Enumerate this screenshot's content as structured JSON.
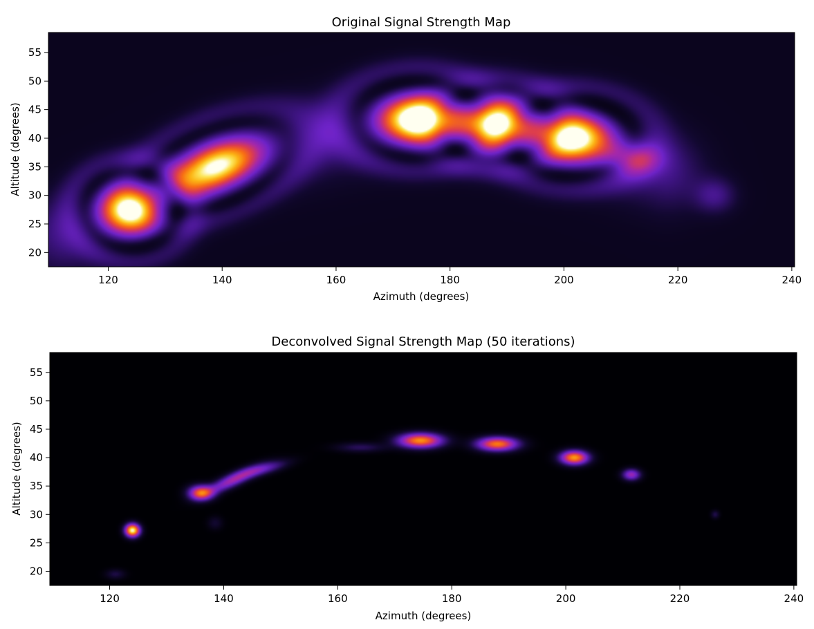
{
  "chart_data": [
    {
      "type": "heatmap",
      "title": "Original Signal Strength Map",
      "xlabel": "Azimuth (degrees)",
      "ylabel": "Altitude (degrees)",
      "xlim": [
        109.5,
        240.5
      ],
      "ylim": [
        17.5,
        58.5
      ],
      "xticks": [
        120,
        140,
        160,
        180,
        200,
        220,
        240
      ],
      "yticks": [
        20,
        25,
        30,
        35,
        40,
        45,
        50,
        55
      ],
      "colormap": "inferno-like (black-purple-orange-yellow-white)",
      "grid": false,
      "background_level": 0.06,
      "arc": {
        "points": [
          [
            112,
            23
          ],
          [
            124,
            28
          ],
          [
            140,
            36
          ],
          [
            160,
            40.5
          ],
          [
            175,
            43.5
          ],
          [
            188,
            42.5
          ],
          [
            201,
            40
          ],
          [
            212,
            36
          ],
          [
            218,
            34
          ]
        ],
        "level": 0.16,
        "width": 4.5
      },
      "sources": [
        {
          "az": 174.5,
          "alt": 43.3,
          "peak": 1.0,
          "sx": 4.4,
          "sy": 2.7,
          "ring": 0.12
        },
        {
          "az": 201.5,
          "alt": 40.0,
          "peak": 0.9,
          "sx": 4.4,
          "sy": 2.7,
          "ring": 0.12
        },
        {
          "az": 188.0,
          "alt": 42.4,
          "peak": 0.82,
          "sx": 4.0,
          "sy": 2.5,
          "ring": 0.1
        },
        {
          "az": 124.0,
          "alt": 27.5,
          "peak": 0.88,
          "sx": 3.3,
          "sy": 2.7,
          "ring": 0.12
        },
        {
          "az": 139.0,
          "alt": 35.0,
          "peak": 0.82,
          "sx": 5.4,
          "sy": 2.6,
          "rot": 22,
          "ring": 0.1
        },
        {
          "az": 212.0,
          "alt": 36.5,
          "peak": 0.34,
          "sx": 3.2,
          "sy": 2.0
        },
        {
          "az": 226.5,
          "alt": 30.0,
          "peak": 0.17,
          "sx": 2.5,
          "sy": 2.1
        }
      ]
    },
    {
      "type": "heatmap",
      "title": "Deconvolved Signal Strength Map (50 iterations)",
      "xlabel": "Azimuth (degrees)",
      "ylabel": "Altitude (degrees)",
      "xlim": [
        109.5,
        240.5
      ],
      "ylim": [
        17.5,
        58.5
      ],
      "xticks": [
        120,
        140,
        160,
        180,
        200,
        220,
        240
      ],
      "yticks": [
        20,
        25,
        30,
        35,
        40,
        45,
        50,
        55
      ],
      "colormap": "inferno-like (black-purple-orange-yellow-white)",
      "grid": false,
      "background_level": 0.0,
      "sources": [
        {
          "az": 124.0,
          "alt": 27.2,
          "peak": 1.0,
          "sx": 0.9,
          "sy": 0.8
        },
        {
          "az": 174.5,
          "alt": 43.0,
          "peak": 0.78,
          "sx": 2.7,
          "sy": 0.9
        },
        {
          "az": 188.0,
          "alt": 42.4,
          "peak": 0.74,
          "sx": 2.5,
          "sy": 0.85
        },
        {
          "az": 201.5,
          "alt": 40.0,
          "peak": 0.8,
          "sx": 1.7,
          "sy": 0.85
        },
        {
          "az": 211.5,
          "alt": 37.0,
          "peak": 0.45,
          "sx": 1.1,
          "sy": 0.7
        },
        {
          "az": 136.0,
          "alt": 33.8,
          "peak": 0.68,
          "sx": 1.5,
          "sy": 0.9
        },
        {
          "az": 141.5,
          "alt": 36.0,
          "peak": 0.45,
          "sx": 3.5,
          "sy": 0.8,
          "rot": 25
        },
        {
          "az": 147.0,
          "alt": 38.0,
          "peak": 0.28,
          "sx": 3.0,
          "sy": 0.7,
          "rot": 15
        },
        {
          "az": 164.0,
          "alt": 41.8,
          "peak": 0.16,
          "sx": 3.0,
          "sy": 0.6
        },
        {
          "az": 121.0,
          "alt": 19.5,
          "peak": 0.13,
          "sx": 1.2,
          "sy": 0.6
        },
        {
          "az": 138.5,
          "alt": 28.5,
          "peak": 0.1,
          "sx": 0.9,
          "sy": 0.8
        },
        {
          "az": 226.2,
          "alt": 30.0,
          "peak": 0.14,
          "sx": 0.5,
          "sy": 0.5
        }
      ]
    }
  ]
}
